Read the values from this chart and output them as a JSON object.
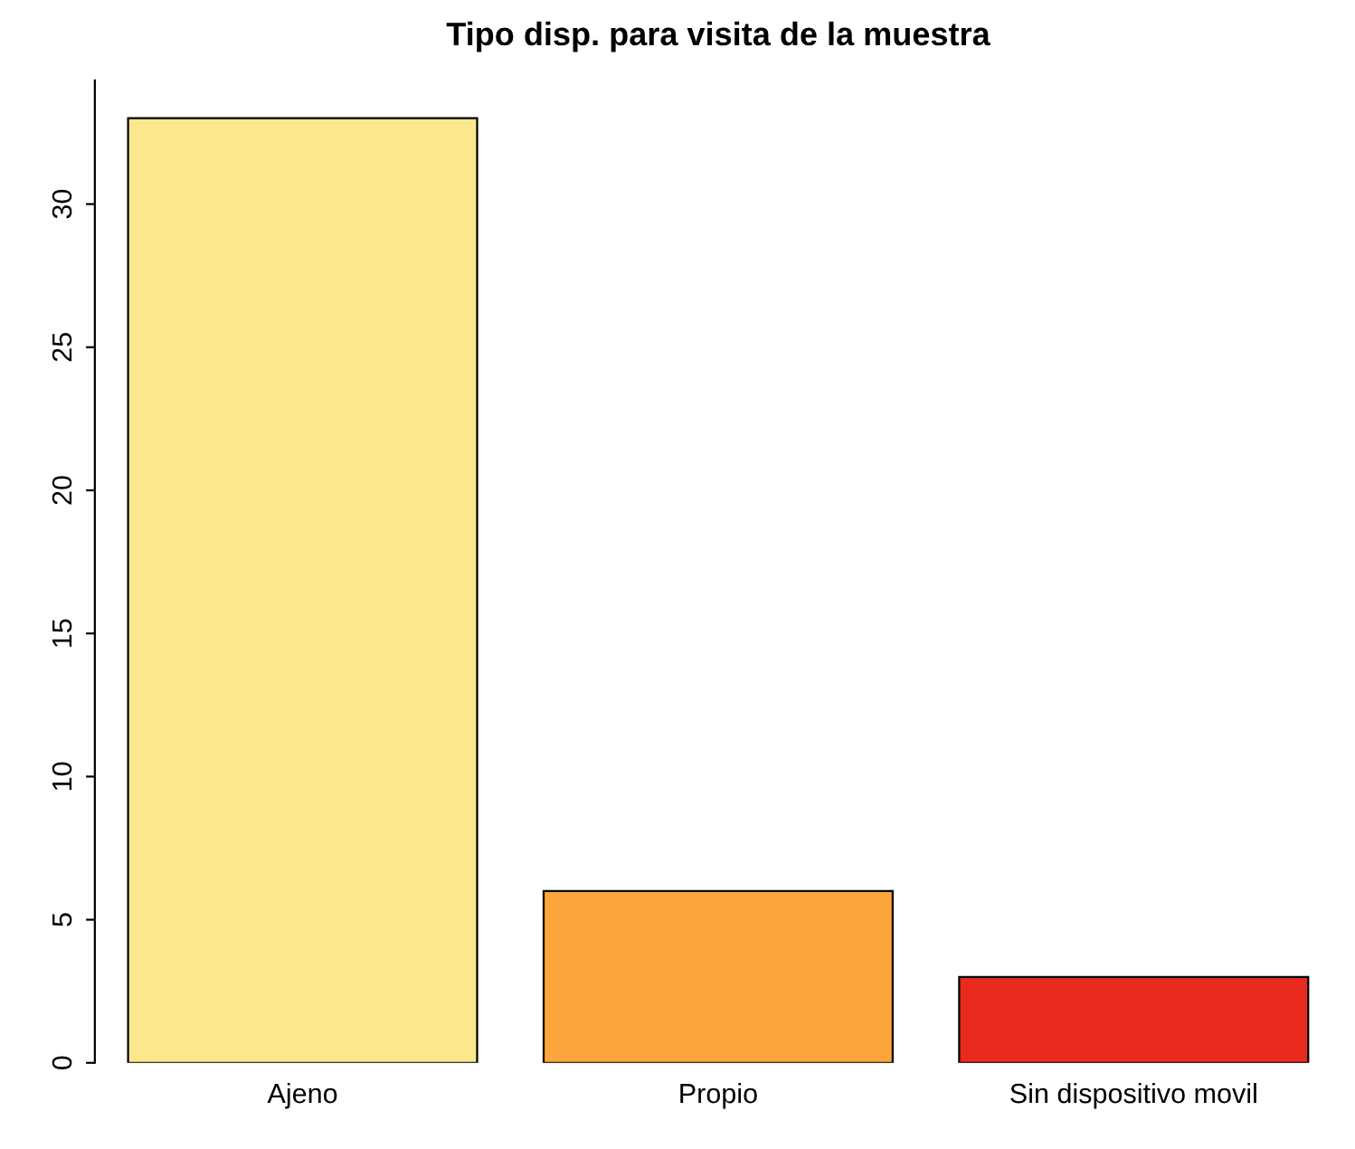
{
  "chart_data": {
    "type": "bar",
    "title": "Tipo disp. para visita de la muestra",
    "categories": [
      "Ajeno",
      "Propio",
      "Sin dispositivo movil"
    ],
    "values": [
      33,
      6,
      3
    ],
    "colors": [
      "#fce78c",
      "#fca63c",
      "#e92a1f"
    ],
    "ylim": [
      0,
      34.32
    ],
    "yticks": [
      0,
      5,
      10,
      15,
      20,
      25,
      30
    ],
    "grid": false,
    "legend": false
  }
}
